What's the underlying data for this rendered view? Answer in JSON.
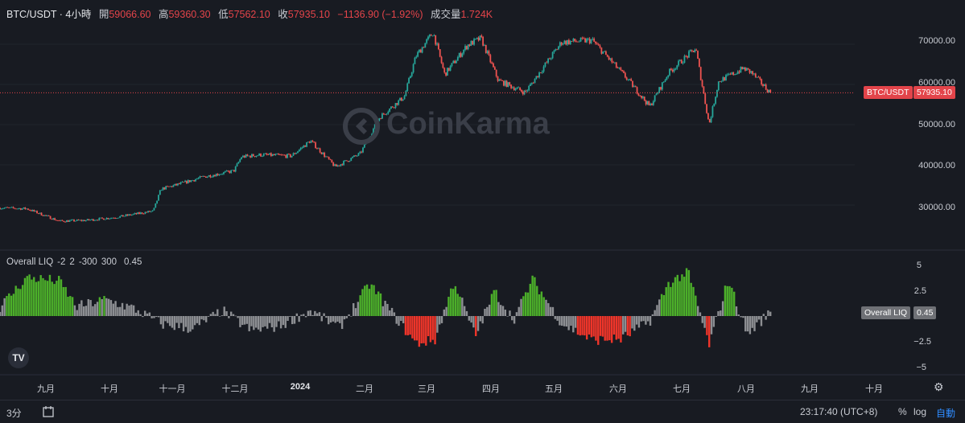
{
  "header": {
    "symbol": "BTC/USDT · 4小時",
    "open_label": "開",
    "open": "59066.60",
    "high_label": "高",
    "high": "59360.30",
    "low_label": "低",
    "low": "57562.10",
    "close_label": "收",
    "close": "57935.10",
    "change": "−1136.90 (−1.92%)",
    "volume_label": "成交量",
    "volume": "1.724K"
  },
  "indicator": {
    "name": "Overall LIQ",
    "p1": "-2",
    "p2": "2",
    "p3": "-300",
    "p4": "300",
    "value": "0.45"
  },
  "price_tag": {
    "symbol": "BTC/USDT",
    "value": "57935.10"
  },
  "liq_tag": {
    "name": "Overall LIQ",
    "value": "0.45"
  },
  "watermark": "CoinKarma",
  "price_axis": [
    "70000.00",
    "60000.00",
    "50000.00",
    "40000.00",
    "30000.00"
  ],
  "liq_axis": [
    "5",
    "2.5",
    "0",
    "−2.5",
    "−5"
  ],
  "time_axis": [
    "九月",
    "十月",
    "十一月",
    "十二月",
    "2024",
    "二月",
    "三月",
    "四月",
    "五月",
    "六月",
    "七月",
    "八月",
    "九月",
    "十月"
  ],
  "bottom": {
    "timeframe": "3分",
    "clock": "23:17:40 (UTC+8)",
    "percent": "%",
    "log": "log",
    "auto": "自動"
  },
  "colors": {
    "up": "#26a69a",
    "down": "#ef5350",
    "liq_pos": "#4caf2a",
    "liq_neg": "#f0352a",
    "liq_neutral": "#8d8f93",
    "price_line": "#e3444a"
  },
  "chart_data": [
    {
      "type": "line",
      "title": "BTC/USDT · 4小時",
      "x": [
        "2023-08-01",
        "2023-08-15",
        "2023-09-01",
        "2023-09-15",
        "2023-10-01",
        "2023-10-20",
        "2023-10-24",
        "2023-11-01",
        "2023-11-15",
        "2023-12-01",
        "2023-12-05",
        "2023-12-15",
        "2023-12-31",
        "2024-01-10",
        "2024-01-23",
        "2024-02-05",
        "2024-02-15",
        "2024-02-28",
        "2024-03-05",
        "2024-03-14",
        "2024-03-20",
        "2024-04-01",
        "2024-04-08",
        "2024-04-17",
        "2024-05-01",
        "2024-05-20",
        "2024-06-05",
        "2024-06-24",
        "2024-07-05",
        "2024-07-15",
        "2024-07-29",
        "2024-08-05",
        "2024-08-10",
        "2024-08-23",
        "2024-08-27",
        "2024-09-06"
      ],
      "y": [
        29300,
        29100,
        26000,
        26200,
        27000,
        28500,
        34000,
        35000,
        37000,
        38500,
        42000,
        42500,
        42200,
        46000,
        39500,
        42800,
        51800,
        57000,
        67000,
        73000,
        62500,
        69800,
        71500,
        61000,
        58000,
        70500,
        71000,
        61000,
        54500,
        63000,
        69000,
        50000,
        60800,
        64000,
        63000,
        57935
      ],
      "ylim": [
        23000,
        75000
      ],
      "ticks": [
        70000,
        60000,
        50000,
        40000,
        30000
      ],
      "last": 57935.1
    },
    {
      "type": "bar",
      "title": "Overall LIQ",
      "x": [
        "2023-08-01",
        "2023-08-15",
        "2023-09-01",
        "2023-09-10",
        "2023-09-25",
        "2023-10-10",
        "2023-10-25",
        "2023-11-10",
        "2023-11-25",
        "2023-12-10",
        "2023-12-25",
        "2024-01-10",
        "2024-01-25",
        "2024-02-10",
        "2024-02-25",
        "2024-03-05",
        "2024-03-15",
        "2024-03-25",
        "2024-04-05",
        "2024-04-15",
        "2024-04-25",
        "2024-05-05",
        "2024-05-20",
        "2024-06-05",
        "2024-06-20",
        "2024-07-05",
        "2024-07-15",
        "2024-07-25",
        "2024-08-05",
        "2024-08-15",
        "2024-08-25",
        "2024-09-06"
      ],
      "values": [
        1.0,
        4.2,
        3.8,
        1.0,
        1.8,
        0.8,
        -0.9,
        -1.4,
        0.6,
        -1.6,
        -1.1,
        0.6,
        -1.3,
        3.5,
        -0.6,
        -3.0,
        -2.6,
        3.8,
        -2.2,
        2.7,
        -0.4,
        4.0,
        -0.8,
        -2.6,
        -2.5,
        -0.6,
        3.6,
        4.8,
        -3.2,
        4.0,
        -2.0,
        0.45
      ],
      "ylim": [
        -5.5,
        5.5
      ],
      "ticks": [
        5,
        2.5,
        0,
        -2.5,
        -5
      ],
      "last": 0.45
    }
  ]
}
